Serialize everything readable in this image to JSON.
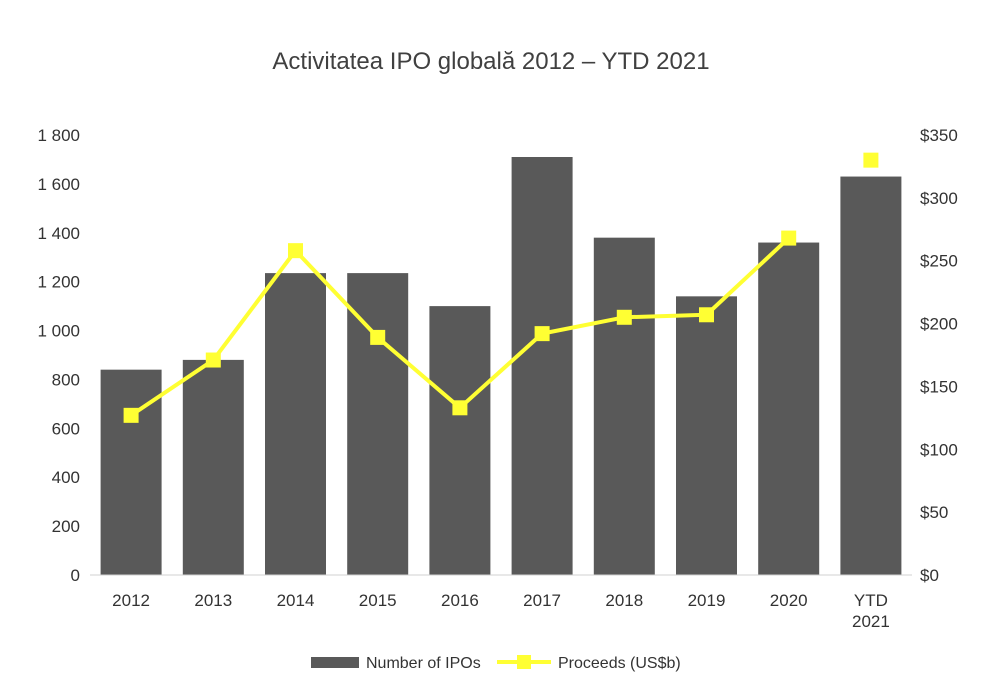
{
  "chart_data": {
    "type": "bar",
    "title": "Activitatea IPO globală 2012 – YTD 2021",
    "categories": [
      [
        "2012"
      ],
      [
        "2013"
      ],
      [
        "2014"
      ],
      [
        "2015"
      ],
      [
        "2016"
      ],
      [
        "2017"
      ],
      [
        "2018"
      ],
      [
        "2019"
      ],
      [
        "2020"
      ],
      [
        "YTD",
        "2021"
      ]
    ],
    "series": [
      {
        "name": "Number of IPOs",
        "type": "bar",
        "axis": "left",
        "color": "#595959",
        "values": [
          840,
          880,
          1235,
          1235,
          1100,
          1710,
          1380,
          1140,
          1360,
          1630
        ]
      },
      {
        "name": "Proceeds (US$b)",
        "type": "line",
        "axis": "right",
        "color": "#FFFF33",
        "values": [
          127,
          171,
          258,
          189,
          133,
          192,
          205,
          207,
          268,
          330
        ],
        "connected_until_index": 8
      }
    ],
    "y_left": {
      "ylim": [
        0,
        1800
      ],
      "ticks": [
        0,
        200,
        400,
        600,
        800,
        1000,
        1200,
        1400,
        1600,
        1800
      ],
      "tick_labels": [
        "0",
        "200",
        "400",
        "600",
        "800",
        "1 000",
        "1 200",
        "1 400",
        "1 600",
        "1 800"
      ]
    },
    "y_right": {
      "ylim": [
        0,
        350
      ],
      "ticks": [
        0,
        50,
        100,
        150,
        200,
        250,
        300,
        350
      ],
      "tick_labels": [
        "$0",
        "$50",
        "$100",
        "$150",
        "$200",
        "$250",
        "$300",
        "$350"
      ]
    },
    "legend": {
      "placement": "bottom-center",
      "entries": [
        "Number of IPOs",
        "Proceeds (US$b)"
      ]
    },
    "grid": false
  }
}
